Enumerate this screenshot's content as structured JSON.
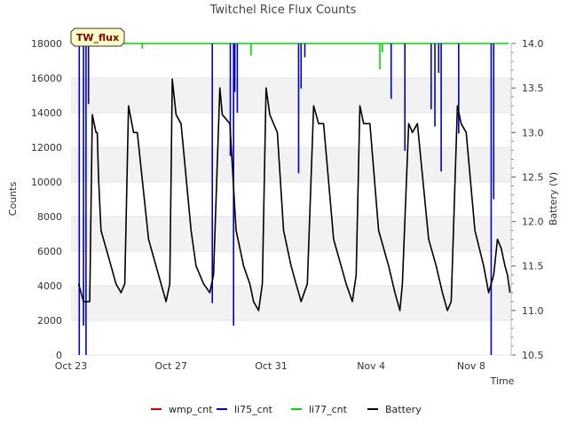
{
  "chart_data": {
    "type": "line",
    "title": "Twitchel Rice Flux Counts",
    "site_label": "TW_flux",
    "xlabel": "Time",
    "ylabel_left": "Counts",
    "ylabel_right": "Battery (V)",
    "ylim_left": [
      0,
      18000
    ],
    "ylim_right": [
      10.5,
      14.0
    ],
    "xlim_days": [
      0,
      17.6
    ],
    "x_ticks": [
      {
        "day": 0,
        "label": "Oct 23"
      },
      {
        "day": 4,
        "label": "Oct 27"
      },
      {
        "day": 8,
        "label": "Oct 31"
      },
      {
        "day": 12,
        "label": "Nov 4"
      },
      {
        "day": 16,
        "label": "Nov 8"
      }
    ],
    "y_ticks_left": [
      0,
      2000,
      4000,
      6000,
      8000,
      10000,
      12000,
      14000,
      16000,
      18000
    ],
    "y_tick_labels_left": [
      "0",
      "2000",
      "4000",
      "6000",
      "8000",
      "10000",
      "12000",
      "14000",
      "16000",
      "18000"
    ],
    "y_ticks_right": [
      10.5,
      11.0,
      11.5,
      12.0,
      12.5,
      13.0,
      13.5,
      14.0
    ],
    "y_tick_labels_right": [
      "10.5",
      "11.0",
      "11.5",
      "12.0",
      "12.5",
      "13.0",
      "13.5",
      "14.0"
    ],
    "grid": "horizontal bands",
    "legend": "bottom-center",
    "series": [
      {
        "name": "wmp_cnt",
        "color": "#dd0000",
        "axis": "left",
        "values": []
      },
      {
        "name": "li75_cnt",
        "color": "#0000cc",
        "axis": "left",
        "baseline": 18000,
        "dips": [
          {
            "day": 0.33,
            "value": 0
          },
          {
            "day": 0.5,
            "value": 1700
          },
          {
            "day": 0.6,
            "value": 0
          },
          {
            "day": 0.7,
            "value": 14500
          },
          {
            "day": 5.65,
            "value": 3000
          },
          {
            "day": 6.37,
            "value": 11500
          },
          {
            "day": 6.5,
            "value": 1700
          },
          {
            "day": 6.55,
            "value": 15200
          },
          {
            "day": 6.65,
            "value": 14000
          },
          {
            "day": 9.1,
            "value": 10500
          },
          {
            "day": 9.2,
            "value": 15400
          },
          {
            "day": 9.35,
            "value": 17200
          },
          {
            "day": 12.8,
            "value": 14800
          },
          {
            "day": 13.35,
            "value": 11800
          },
          {
            "day": 14.4,
            "value": 14200
          },
          {
            "day": 14.55,
            "value": 13200
          },
          {
            "day": 14.7,
            "value": 16300
          },
          {
            "day": 14.8,
            "value": 10600
          },
          {
            "day": 15.5,
            "value": 12800
          },
          {
            "day": 16.8,
            "value": 0
          },
          {
            "day": 16.9,
            "value": 9000
          }
        ]
      },
      {
        "name": "li77_cnt",
        "color": "#00dd00",
        "axis": "left",
        "baseline": 18000,
        "dips": [
          {
            "day": 2.85,
            "value": 17700
          },
          {
            "day": 7.2,
            "value": 17300
          },
          {
            "day": 12.35,
            "value": 16500
          },
          {
            "day": 12.45,
            "value": 17500
          }
        ]
      },
      {
        "name": "Battery",
        "color": "#000000",
        "axis": "right",
        "description": "daily charge/discharge cycle",
        "points": [
          [
            0.3,
            11.3
          ],
          [
            0.5,
            11.1
          ],
          [
            0.75,
            11.1
          ],
          [
            0.85,
            13.2
          ],
          [
            1.0,
            13.0
          ],
          [
            1.05,
            13.0
          ],
          [
            1.1,
            12.5
          ],
          [
            1.2,
            11.9
          ],
          [
            1.5,
            11.6
          ],
          [
            1.8,
            11.3
          ],
          [
            2.0,
            11.2
          ],
          [
            2.15,
            11.3
          ],
          [
            2.3,
            13.3
          ],
          [
            2.5,
            13.0
          ],
          [
            2.65,
            13.0
          ],
          [
            3.1,
            11.8
          ],
          [
            3.4,
            11.5
          ],
          [
            3.6,
            11.3
          ],
          [
            3.8,
            11.1
          ],
          [
            3.95,
            11.3
          ],
          [
            4.05,
            13.6
          ],
          [
            4.2,
            13.2
          ],
          [
            4.4,
            13.1
          ],
          [
            4.8,
            11.9
          ],
          [
            5.0,
            11.5
          ],
          [
            5.3,
            11.3
          ],
          [
            5.55,
            11.2
          ],
          [
            5.7,
            11.4
          ],
          [
            5.95,
            13.5
          ],
          [
            6.05,
            13.2
          ],
          [
            6.35,
            13.1
          ],
          [
            6.6,
            11.9
          ],
          [
            6.9,
            11.5
          ],
          [
            7.15,
            11.3
          ],
          [
            7.3,
            11.1
          ],
          [
            7.5,
            11.0
          ],
          [
            7.65,
            11.3
          ],
          [
            7.8,
            13.5
          ],
          [
            7.95,
            13.2
          ],
          [
            8.25,
            13.0
          ],
          [
            8.5,
            11.9
          ],
          [
            8.8,
            11.5
          ],
          [
            9.0,
            11.3
          ],
          [
            9.2,
            11.1
          ],
          [
            9.45,
            11.3
          ],
          [
            9.7,
            13.3
          ],
          [
            9.9,
            13.1
          ],
          [
            10.1,
            13.1
          ],
          [
            10.5,
            11.8
          ],
          [
            10.8,
            11.5
          ],
          [
            11.0,
            11.3
          ],
          [
            11.25,
            11.1
          ],
          [
            11.4,
            11.4
          ],
          [
            11.55,
            13.3
          ],
          [
            11.7,
            13.1
          ],
          [
            11.95,
            13.1
          ],
          [
            12.3,
            11.9
          ],
          [
            12.7,
            11.5
          ],
          [
            12.95,
            11.2
          ],
          [
            13.15,
            11.0
          ],
          [
            13.25,
            11.3
          ],
          [
            13.5,
            13.1
          ],
          [
            13.65,
            13.0
          ],
          [
            13.85,
            13.1
          ],
          [
            14.3,
            11.8
          ],
          [
            14.6,
            11.5
          ],
          [
            14.85,
            11.2
          ],
          [
            15.05,
            11.0
          ],
          [
            15.2,
            11.1
          ],
          [
            15.45,
            13.3
          ],
          [
            15.6,
            13.1
          ],
          [
            15.8,
            13.0
          ],
          [
            16.15,
            11.9
          ],
          [
            16.5,
            11.5
          ],
          [
            16.7,
            11.2
          ],
          [
            16.9,
            11.4
          ],
          [
            17.05,
            11.8
          ],
          [
            17.2,
            11.7
          ],
          [
            17.35,
            11.5
          ],
          [
            17.45,
            11.4
          ],
          [
            17.55,
            11.2
          ]
        ]
      }
    ]
  }
}
